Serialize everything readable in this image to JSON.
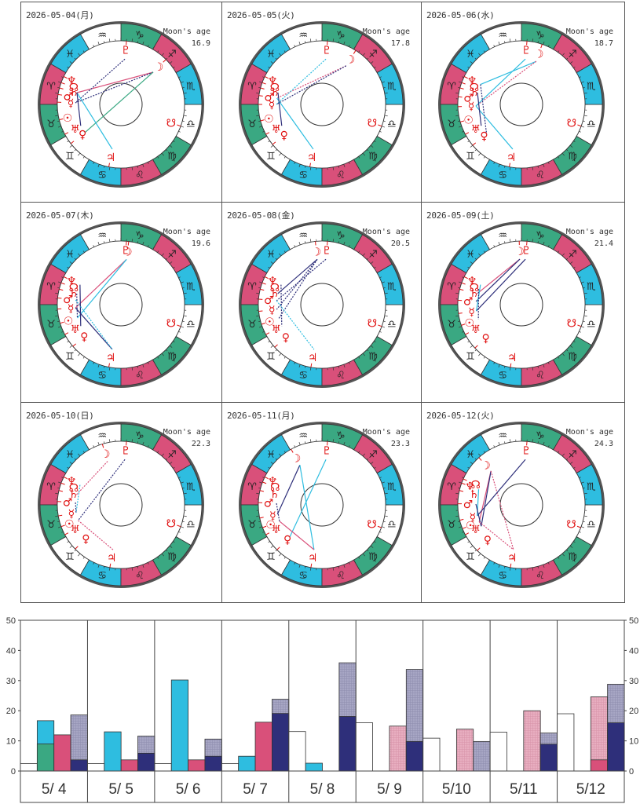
{
  "labels": {
    "moon_age": "Moon's age"
  },
  "zodiac": {
    "signs": [
      {
        "name": "aries",
        "glyph": "♈",
        "color": "#d9507a"
      },
      {
        "name": "taurus",
        "glyph": "♉",
        "color": "#3aa882"
      },
      {
        "name": "gemini",
        "glyph": "♊",
        "color": "#ffffff"
      },
      {
        "name": "cancer",
        "glyph": "♋",
        "color": "#2ebde0"
      },
      {
        "name": "leo",
        "glyph": "♌",
        "color": "#d9507a"
      },
      {
        "name": "virgo",
        "glyph": "♍",
        "color": "#3aa882"
      },
      {
        "name": "libra",
        "glyph": "♎",
        "color": "#ffffff"
      },
      {
        "name": "scorpio",
        "glyph": "♏",
        "color": "#2ebde0"
      },
      {
        "name": "sagittarius",
        "glyph": "♐",
        "color": "#d9507a"
      },
      {
        "name": "capricorn",
        "glyph": "♑",
        "color": "#3aa882"
      },
      {
        "name": "aquarius",
        "glyph": "♒",
        "color": "#ffffff"
      },
      {
        "name": "pisces",
        "glyph": "♓",
        "color": "#2ebde0"
      }
    ]
  },
  "planet_glyphs": {
    "sun": "☉",
    "moon": "☽",
    "mercury": "☿",
    "venus": "♀",
    "mars": "♂",
    "jupiter": "♃",
    "saturn": "♄",
    "uranus": "♅",
    "neptune": "♆",
    "pluto": "♇",
    "node": "☊",
    "south_node": "☋"
  },
  "aspect_colors": {
    "red": "#d9507a",
    "cyan": "#2ebde0",
    "navy": "#2e2f7a",
    "green": "#3aa882"
  },
  "days": [
    {
      "date": "2026-05-04(月)",
      "moon_age": "16.9",
      "planets": {
        "pluto": 295,
        "moon": 255,
        "neptune": 4,
        "node": 10,
        "saturn": 15,
        "mars": 21,
        "mercury": 28,
        "sun": 44,
        "uranus": 58,
        "venus": 68,
        "jupiter": 109,
        "south_node": 190
      },
      "aspects": [
        {
          "a": "moon",
          "b": "saturn",
          "color": "red",
          "dash": false
        },
        {
          "a": "moon",
          "b": "mercury",
          "color": "navy",
          "dash": true
        },
        {
          "a": "moon",
          "b": "venus",
          "color": "green",
          "dash": false
        },
        {
          "a": "pluto",
          "b": "mercury",
          "color": "navy",
          "dash": true
        },
        {
          "a": "saturn",
          "b": "jupiter",
          "color": "cyan",
          "dash": false
        },
        {
          "a": "saturn",
          "b": "uranus",
          "color": "navy",
          "dash": false
        }
      ]
    },
    {
      "date": "2026-05-05(火)",
      "moon_age": "17.8",
      "planets": {
        "pluto": 295,
        "moon": 268,
        "neptune": 4,
        "node": 10,
        "saturn": 15,
        "mars": 22,
        "mercury": 30,
        "sun": 45,
        "uranus": 58,
        "venus": 69,
        "jupiter": 109,
        "south_node": 190
      },
      "aspects": [
        {
          "a": "moon",
          "b": "mars",
          "color": "red",
          "dash": true
        },
        {
          "a": "moon",
          "b": "mercury",
          "color": "navy",
          "dash": true
        },
        {
          "a": "pluto",
          "b": "mercury",
          "color": "cyan",
          "dash": true
        },
        {
          "a": "mars",
          "b": "jupiter",
          "color": "cyan",
          "dash": false
        },
        {
          "a": "saturn",
          "b": "uranus",
          "color": "navy",
          "dash": false
        }
      ]
    },
    {
      "date": "2026-05-06(水)",
      "moon_age": "18.7",
      "planets": {
        "pluto": 295,
        "moon": 281,
        "neptune": 4,
        "node": 10,
        "saturn": 15,
        "mars": 23,
        "mercury": 32,
        "sun": 46,
        "uranus": 58,
        "venus": 70,
        "jupiter": 109,
        "south_node": 190
      },
      "aspects": [
        {
          "a": "moon",
          "b": "neptune",
          "color": "cyan",
          "dash": false
        },
        {
          "a": "moon",
          "b": "mercury",
          "color": "red",
          "dash": true
        },
        {
          "a": "pluto",
          "b": "mercury",
          "color": "cyan",
          "dash": false
        },
        {
          "a": "mercury",
          "b": "jupiter",
          "color": "cyan",
          "dash": false
        },
        {
          "a": "saturn",
          "b": "uranus",
          "color": "navy",
          "dash": false
        },
        {
          "a": "neptune",
          "b": "venus",
          "color": "navy",
          "dash": true
        }
      ]
    },
    {
      "date": "2026-05-07(木)",
      "moon_age": "19.6",
      "planets": {
        "pluto": 295,
        "moon": 293,
        "neptune": 4,
        "node": 10,
        "saturn": 16,
        "mars": 24,
        "mercury": 34,
        "sun": 47,
        "uranus": 58,
        "venus": 71,
        "jupiter": 109,
        "south_node": 190
      },
      "aspects": [
        {
          "a": "moon",
          "b": "mercury",
          "color": "red",
          "dash": false
        },
        {
          "a": "moon",
          "b": "sun",
          "color": "cyan",
          "dash": false
        },
        {
          "a": "neptune",
          "b": "uranus",
          "color": "navy",
          "dash": false
        },
        {
          "a": "mercury",
          "b": "jupiter",
          "color": "navy",
          "dash": false
        },
        {
          "a": "saturn",
          "b": "sun",
          "color": "navy",
          "dash": true
        },
        {
          "a": "mars",
          "b": "jupiter",
          "color": "cyan",
          "dash": true
        }
      ]
    },
    {
      "date": "2026-05-08(金)",
      "moon_age": "20.5",
      "planets": {
        "pluto": 295,
        "moon": 306,
        "neptune": 4,
        "node": 10,
        "saturn": 16,
        "mars": 25,
        "mercury": 36,
        "sun": 48,
        "uranus": 58,
        "venus": 72,
        "jupiter": 110,
        "south_node": 190
      },
      "aspects": [
        {
          "a": "moon",
          "b": "saturn",
          "color": "navy",
          "dash": false
        },
        {
          "a": "moon",
          "b": "mercury",
          "color": "navy",
          "dash": true
        },
        {
          "a": "moon",
          "b": "sun",
          "color": "navy",
          "dash": true
        },
        {
          "a": "pluto",
          "b": "mars",
          "color": "navy",
          "dash": true
        },
        {
          "a": "neptune",
          "b": "uranus",
          "color": "navy",
          "dash": true
        },
        {
          "a": "mars",
          "b": "jupiter",
          "color": "cyan",
          "dash": true
        }
      ]
    },
    {
      "date": "2026-05-09(土)",
      "moon_age": "21.4",
      "planets": {
        "pluto": 295,
        "moon": 302,
        "neptune": 4,
        "node": 10,
        "saturn": 16,
        "mars": 26,
        "mercury": 38,
        "sun": 49,
        "uranus": 58,
        "venus": 73,
        "jupiter": 110,
        "south_node": 190
      },
      "aspects": [
        {
          "a": "moon",
          "b": "saturn",
          "color": "red",
          "dash": false
        },
        {
          "a": "moon",
          "b": "mars",
          "color": "navy",
          "dash": false
        },
        {
          "a": "pluto",
          "b": "mercury",
          "color": "navy",
          "dash": false
        },
        {
          "a": "neptune",
          "b": "mercury",
          "color": "cyan",
          "dash": false
        },
        {
          "a": "node",
          "b": "sun",
          "color": "navy",
          "dash": true
        }
      ]
    },
    {
      "date": "2026-05-10(日)",
      "moon_age": "22.3",
      "planets": {
        "pluto": 295,
        "moon": 317,
        "neptune": 4,
        "node": 10,
        "saturn": 17,
        "mars": 27,
        "mercury": 40,
        "sun": 50,
        "uranus": 58,
        "venus": 74,
        "jupiter": 110,
        "south_node": 190
      },
      "aspects": [
        {
          "a": "moon",
          "b": "saturn",
          "color": "red",
          "dash": true
        },
        {
          "a": "pluto",
          "b": "sun",
          "color": "navy",
          "dash": true
        },
        {
          "a": "neptune",
          "b": "mercury",
          "color": "cyan",
          "dash": true
        },
        {
          "a": "mars",
          "b": "mercury",
          "color": "navy",
          "dash": true
        },
        {
          "a": "sun",
          "b": "jupiter",
          "color": "red",
          "dash": true
        }
      ]
    },
    {
      "date": "2026-05-11(月)",
      "moon_age": "23.3",
      "planets": {
        "pluto": 295,
        "moon": 329,
        "neptune": 4,
        "node": 9,
        "saturn": 17,
        "mars": 28,
        "mercury": 42,
        "sun": 51,
        "uranus": 58,
        "venus": 75,
        "jupiter": 110,
        "south_node": 189
      },
      "aspects": [
        {
          "a": "moon",
          "b": "mercury",
          "color": "navy",
          "dash": false
        },
        {
          "a": "moon",
          "b": "jupiter",
          "color": "cyan",
          "dash": false
        },
        {
          "a": "pluto",
          "b": "venus",
          "color": "cyan",
          "dash": false
        },
        {
          "a": "sun",
          "b": "jupiter",
          "color": "red",
          "dash": false
        },
        {
          "a": "mars",
          "b": "sun",
          "color": "navy",
          "dash": true
        }
      ]
    },
    {
      "date": "2026-05-12(火)",
      "moon_age": "24.3",
      "planets": {
        "pluto": 295,
        "moon": 342,
        "node": 6,
        "neptune": 10,
        "saturn": 17,
        "mars": 29,
        "mercury": 44,
        "sun": 52,
        "uranus": 58,
        "venus": 76,
        "jupiter": 110,
        "south_node": 189
      },
      "aspects": [
        {
          "a": "moon",
          "b": "sun",
          "color": "red",
          "dash": false
        },
        {
          "a": "moon",
          "b": "uranus",
          "color": "navy",
          "dash": false
        },
        {
          "a": "moon",
          "b": "jupiter",
          "color": "red",
          "dash": true
        },
        {
          "a": "pluto",
          "b": "mercury",
          "color": "navy",
          "dash": false
        },
        {
          "a": "neptune",
          "b": "mercury",
          "color": "cyan",
          "dash": false
        },
        {
          "a": "mars",
          "b": "uranus",
          "color": "navy",
          "dash": false
        },
        {
          "a": "sun",
          "b": "jupiter",
          "color": "red",
          "dash": true
        }
      ]
    }
  ],
  "chart_data": {
    "type": "bar",
    "title": "",
    "xlabel": "",
    "ylabel": "",
    "ylim": [
      0,
      50
    ],
    "yticks": [
      0,
      10,
      20,
      30,
      40,
      50
    ],
    "grid": false,
    "axes": "left-and-right",
    "categories": [
      "5/ 4",
      "5/ 5",
      "5/ 6",
      "5/ 7",
      "5/ 8",
      "5/ 9",
      "5/10",
      "5/11",
      "5/12"
    ],
    "series": [
      {
        "name": "white",
        "color": "#ffffff",
        "values": [
          2.5,
          2.5,
          2.5,
          2.5,
          13.1,
          16.0,
          10.9,
          12.9,
          19.0
        ]
      },
      {
        "name": "cyan",
        "color": "#2ebde0",
        "values": [
          16.7,
          13.0,
          30.2,
          4.9,
          2.6,
          0,
          0,
          0,
          0
        ]
      },
      {
        "name": "green",
        "color": "#3aa882",
        "values": [
          9.0,
          0,
          0,
          0,
          0,
          0,
          0,
          0,
          0
        ],
        "overlay_on": "cyan"
      },
      {
        "name": "pink-light",
        "color": "#e8aec0",
        "values": [
          0,
          0,
          0,
          0,
          0,
          14.9,
          13.9,
          20.0,
          24.6
        ]
      },
      {
        "name": "red",
        "color": "#d9507a",
        "values": [
          12.0,
          3.7,
          3.7,
          16.2,
          0,
          0,
          0,
          0,
          3.7
        ],
        "overlay_on": "pink-light"
      },
      {
        "name": "gray",
        "color": "#a7a6c4",
        "values": [
          18.6,
          11.6,
          10.6,
          23.8,
          35.9,
          33.7,
          9.8,
          12.6,
          28.8
        ]
      },
      {
        "name": "navy",
        "color": "#2e2f7a",
        "values": [
          3.7,
          5.9,
          4.9,
          19.1,
          18.1,
          9.8,
          0,
          8.9,
          16.0
        ],
        "overlay_on": "gray"
      }
    ]
  }
}
